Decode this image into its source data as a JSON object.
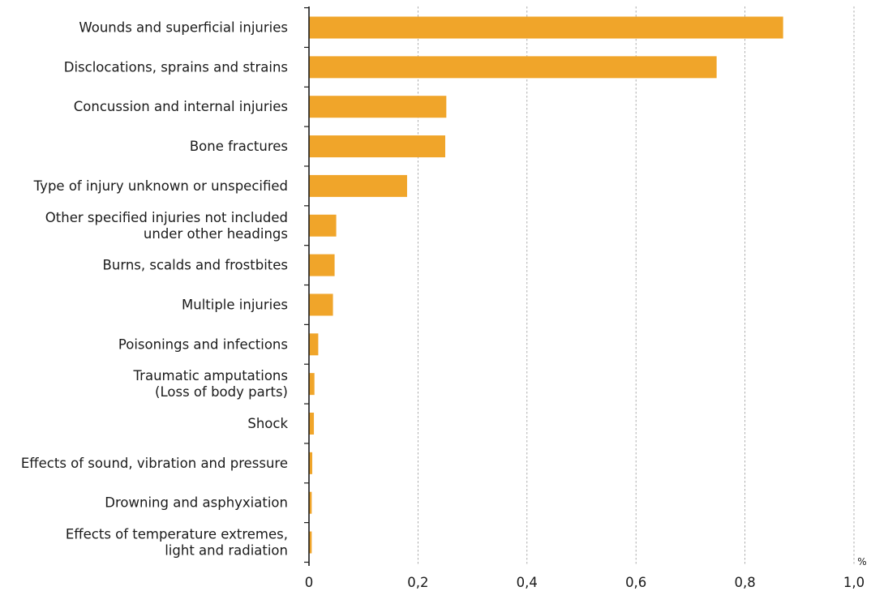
{
  "chart_data": {
    "type": "bar",
    "orientation": "horizontal",
    "categories": [
      [
        "Wounds and superficial injuries"
      ],
      [
        "Disclocations, sprains and strains"
      ],
      [
        "Concussion and internal injuries"
      ],
      [
        "Bone fractures"
      ],
      [
        "Type of injury unknown or unspecified"
      ],
      [
        "Other specified injuries not included",
        "under other headings"
      ],
      [
        "Burns, scalds and frostbites"
      ],
      [
        "Multiple injuries"
      ],
      [
        "Poisonings and infections"
      ],
      [
        "Traumatic amputations",
        "(Loss of body parts)"
      ],
      [
        "Shock"
      ],
      [
        "Effects of sound, vibration and pressure"
      ],
      [
        "Drowning and asphyxiation"
      ],
      [
        "Effects of temperature extremes,",
        "light and radiation"
      ]
    ],
    "values": [
      0.87,
      0.748,
      0.252,
      0.25,
      0.18,
      0.05,
      0.047,
      0.044,
      0.017,
      0.01,
      0.009,
      0.006,
      0.005,
      0.005
    ],
    "xlim": [
      0,
      1.0
    ],
    "xticks": [
      0,
      0.2,
      0.4,
      0.6,
      0.8,
      1.0
    ],
    "xtick_labels": [
      "0",
      "0,2",
      "0,4",
      "0,6",
      "0,8",
      "1,0"
    ],
    "xunit": "%",
    "title": "",
    "xlabel": "",
    "ylabel": "",
    "grid": "vertical dashed",
    "bar_color": "#F0A52A"
  }
}
